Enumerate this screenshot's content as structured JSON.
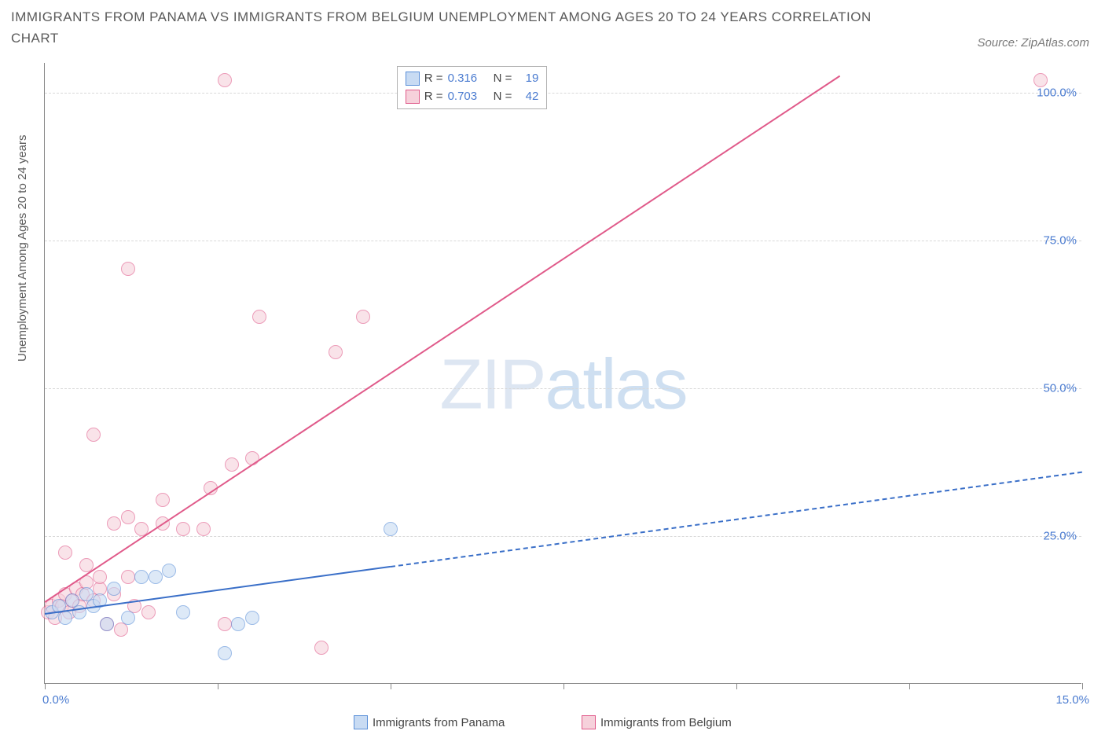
{
  "title": "IMMIGRANTS FROM PANAMA VS IMMIGRANTS FROM BELGIUM UNEMPLOYMENT AMONG AGES 20 TO 24 YEARS CORRELATION CHART",
  "source": "Source: ZipAtlas.com",
  "y_axis_title": "Unemployment Among Ages 20 to 24 years",
  "watermark_a": "ZIP",
  "watermark_b": "atlas",
  "chart": {
    "type": "scatter",
    "xlim": [
      0,
      15
    ],
    "ylim": [
      0,
      105
    ],
    "x_ticks": [
      0,
      2.5,
      5.0,
      7.5,
      10.0,
      12.5,
      15.0
    ],
    "x_tick_labels": {
      "0": "0.0%",
      "15": "15.0%"
    },
    "y_ticks": [
      25,
      50,
      75,
      100
    ],
    "y_tick_labels": {
      "25": "25.0%",
      "50": "50.0%",
      "75": "75.0%",
      "100": "100.0%"
    },
    "grid_color": "#d8d8d8",
    "background_color": "#ffffff",
    "marker_radius": 9
  },
  "series": {
    "panama": {
      "label": "Immigrants from Panama",
      "fill": "#c8dbf3",
      "stroke": "#5a8fd8",
      "fill_opacity": 0.6,
      "R": "0.316",
      "N": "19",
      "trend": {
        "x1": 0,
        "y1": 12,
        "x2": 15,
        "y2": 36,
        "solid_until_x": 5.0,
        "color": "#3a6fc8",
        "width": 2
      },
      "points": [
        [
          0.1,
          12
        ],
        [
          0.2,
          13
        ],
        [
          0.3,
          11
        ],
        [
          0.4,
          14
        ],
        [
          0.5,
          12
        ],
        [
          0.6,
          15
        ],
        [
          0.7,
          13
        ],
        [
          0.8,
          14
        ],
        [
          0.9,
          10
        ],
        [
          1.0,
          16
        ],
        [
          1.2,
          11
        ],
        [
          1.4,
          18
        ],
        [
          1.6,
          18
        ],
        [
          1.8,
          19
        ],
        [
          2.0,
          12
        ],
        [
          2.6,
          5
        ],
        [
          2.8,
          10
        ],
        [
          3.0,
          11
        ],
        [
          5.0,
          26
        ]
      ]
    },
    "belgium": {
      "label": "Immigrants from Belgium",
      "fill": "#f6d1db",
      "stroke": "#e05a8a",
      "fill_opacity": 0.6,
      "R": "0.703",
      "N": "42",
      "trend": {
        "x1": 0,
        "y1": 14,
        "x2": 11.5,
        "y2": 103,
        "solid_until_x": 11.5,
        "color": "#e05a8a",
        "width": 2
      },
      "points": [
        [
          0.05,
          12
        ],
        [
          0.1,
          13
        ],
        [
          0.15,
          11
        ],
        [
          0.2,
          14
        ],
        [
          0.25,
          13
        ],
        [
          0.3,
          15
        ],
        [
          0.35,
          12
        ],
        [
          0.4,
          14
        ],
        [
          0.45,
          16
        ],
        [
          0.5,
          13
        ],
        [
          0.55,
          15
        ],
        [
          0.6,
          17
        ],
        [
          0.7,
          14
        ],
        [
          0.8,
          16
        ],
        [
          0.9,
          10
        ],
        [
          0.3,
          22
        ],
        [
          0.6,
          20
        ],
        [
          0.8,
          18
        ],
        [
          1.0,
          15
        ],
        [
          1.1,
          9
        ],
        [
          1.2,
          18
        ],
        [
          1.3,
          13
        ],
        [
          1.5,
          12
        ],
        [
          1.0,
          27
        ],
        [
          1.2,
          28
        ],
        [
          1.4,
          26
        ],
        [
          1.7,
          27
        ],
        [
          2.0,
          26
        ],
        [
          2.3,
          26
        ],
        [
          0.7,
          42
        ],
        [
          1.7,
          31
        ],
        [
          2.4,
          33
        ],
        [
          2.7,
          37
        ],
        [
          3.0,
          38
        ],
        [
          1.2,
          70
        ],
        [
          3.1,
          62
        ],
        [
          4.6,
          62
        ],
        [
          4.2,
          56
        ],
        [
          2.6,
          102
        ],
        [
          14.4,
          102
        ],
        [
          2.6,
          10
        ],
        [
          4.0,
          6
        ]
      ]
    }
  },
  "stat_labels": {
    "R": "R =",
    "N": "N ="
  }
}
